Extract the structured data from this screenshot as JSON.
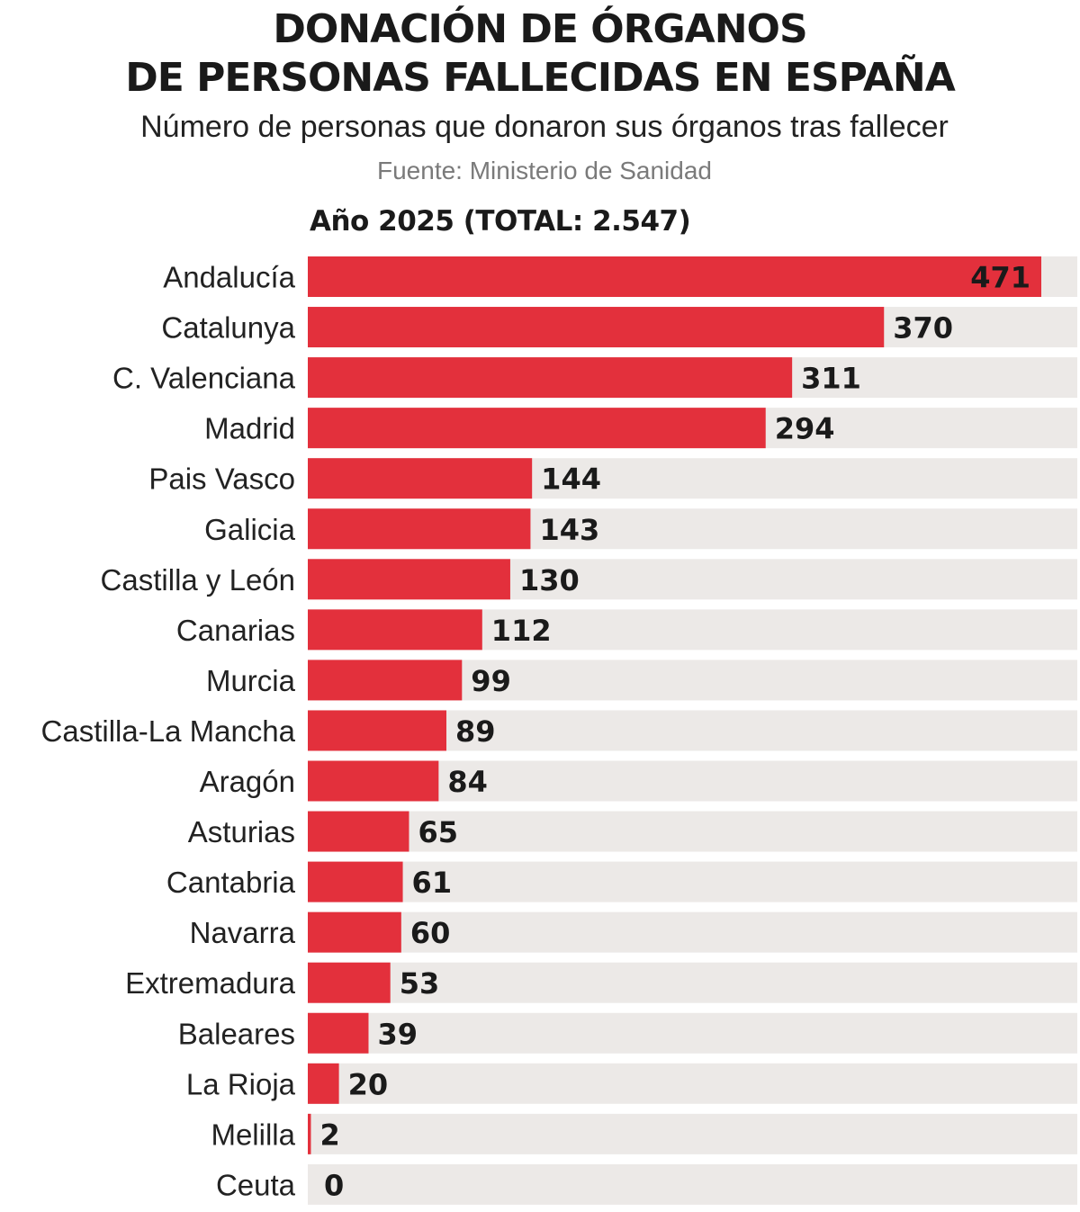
{
  "title_line1": "DONACIÓN DE ÓRGANOS",
  "title_line2": "DE PERSONAS FALLECIDAS EN ESPAÑA",
  "subtitle": "Número de personas que donaron sus órganos tras fallecer",
  "source": "Fuente: Ministerio de Sanidad",
  "chart_data": {
    "type": "bar",
    "orientation": "horizontal",
    "title": "Año 2025 (TOTAL: 2.547)",
    "categories": [
      "Andalucía",
      "Catalunya",
      "C. Valenciana",
      "Madrid",
      "Pais Vasco",
      "Galicia",
      "Castilla y León",
      "Canarias",
      "Murcia",
      "Castilla-La Mancha",
      "Aragón",
      "Asturias",
      "Cantabria",
      "Navarra",
      "Extremadura",
      "Baleares",
      "La Rioja",
      "Melilla",
      "Ceuta"
    ],
    "values": [
      471,
      370,
      311,
      294,
      144,
      143,
      130,
      112,
      99,
      89,
      84,
      65,
      61,
      60,
      53,
      39,
      20,
      2,
      0
    ],
    "xlim": [
      0,
      494
    ],
    "grid": false,
    "legend": "none",
    "colors": {
      "bar": "#e3303c",
      "track": "#ece9e7"
    }
  }
}
